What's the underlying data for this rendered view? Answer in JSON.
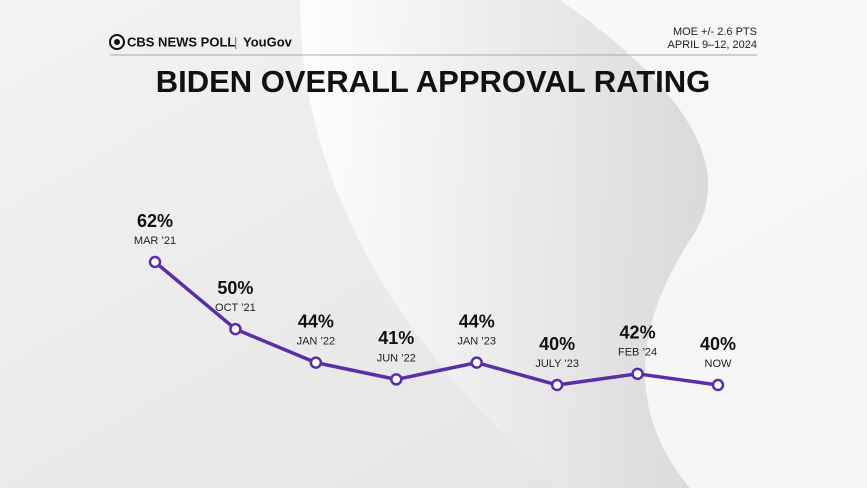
{
  "chart_data": {
    "type": "line",
    "title": "BIDEN OVERALL APPROVAL RATING",
    "source": [
      "CBS NEWS POLL",
      "YouGov"
    ],
    "notes": [
      "MOE +/- 2.6 PTS",
      "APRIL 9–12, 2024"
    ],
    "categories": [
      "MAR ’21",
      "OCT ’21",
      "JAN ’22",
      "JUN ’22",
      "JAN ’23",
      "JULY ’23",
      "FEB ’24",
      "NOW"
    ],
    "values": [
      62,
      50,
      44,
      41,
      44,
      40,
      42,
      40
    ],
    "value_labels": [
      "62%",
      "50%",
      "44%",
      "41%",
      "44%",
      "40%",
      "42%",
      "40%"
    ],
    "color": "#5a2ea6"
  }
}
